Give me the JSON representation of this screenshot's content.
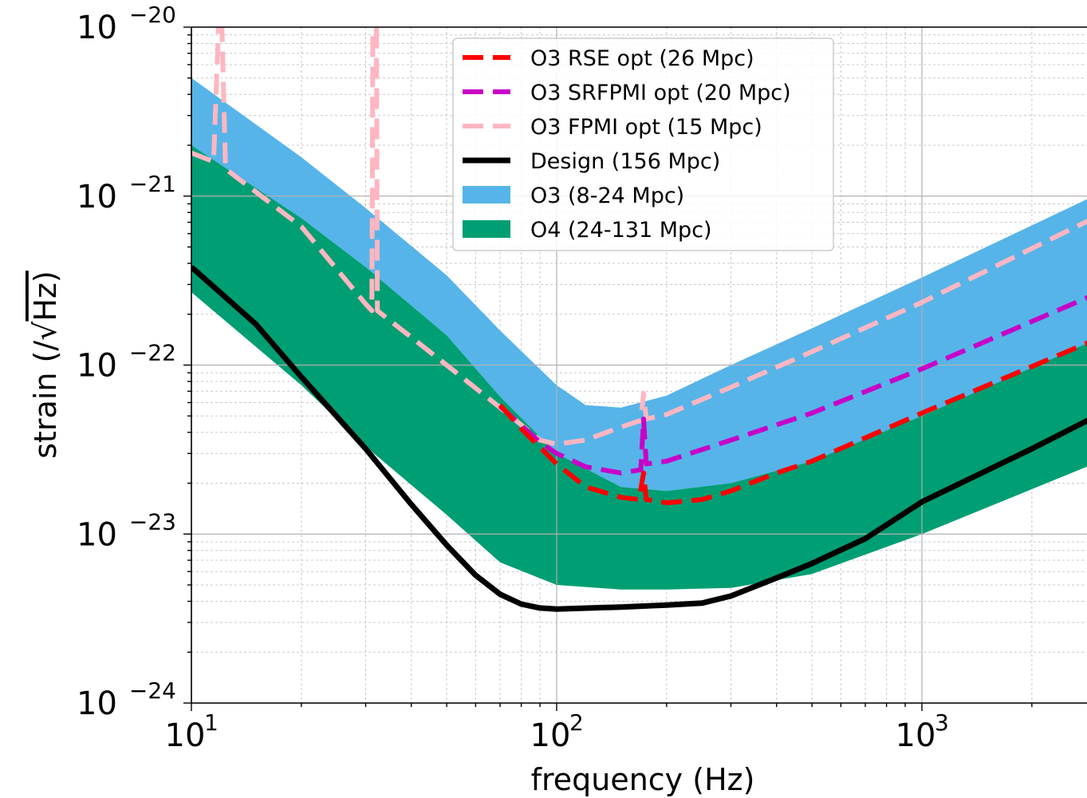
{
  "chart_data": {
    "type": "line",
    "title": "",
    "xlabel": "frequency (Hz)",
    "ylabel": "strain (/√Hz)",
    "ylabel_parts": {
      "pre": "strain (/",
      "root": "√",
      "post": "Hz)"
    },
    "xscale": "log",
    "yscale": "log",
    "xlim": [
      10,
      2950
    ],
    "ylim": [
      1e-24,
      1e-20
    ],
    "grid": true,
    "legend_position": "top-center",
    "x_ticks": [
      {
        "value": 10,
        "base": "10",
        "exp": "1"
      },
      {
        "value": 100,
        "base": "10",
        "exp": "2"
      },
      {
        "value": 1000,
        "base": "10",
        "exp": "3"
      }
    ],
    "y_ticks": [
      {
        "value": 1e-20,
        "base": "10",
        "exp": "−20"
      },
      {
        "value": 1e-21,
        "base": "10",
        "exp": "−21"
      },
      {
        "value": 1e-22,
        "base": "10",
        "exp": "−22"
      },
      {
        "value": 1e-23,
        "base": "10",
        "exp": "−23"
      },
      {
        "value": 1e-24,
        "base": "10",
        "exp": "−24"
      }
    ],
    "bands": [
      {
        "name": "O3 (8-24 Mpc)",
        "color": "#56b4e9",
        "upper": [
          [
            10,
            5e-21
          ],
          [
            20,
            1.7e-21
          ],
          [
            30,
            8.5e-22
          ],
          [
            50,
            3.4e-22
          ],
          [
            70,
            1.6e-22
          ],
          [
            100,
            7.6e-23
          ],
          [
            120,
            5.8e-23
          ],
          [
            150,
            5.6e-23
          ],
          [
            200,
            6.6e-23
          ],
          [
            300,
            1e-22
          ],
          [
            500,
            1.65e-22
          ],
          [
            1000,
            3.3e-22
          ],
          [
            2950,
            1e-21
          ]
        ],
        "lower": [
          [
            10,
            2e-21
          ],
          [
            20,
            7.4e-22
          ],
          [
            30,
            3.8e-22
          ],
          [
            50,
            1.5e-22
          ],
          [
            70,
            6.5e-23
          ],
          [
            100,
            3e-23
          ],
          [
            150,
            1.9e-23
          ],
          [
            200,
            1.8e-23
          ],
          [
            300,
            2e-23
          ],
          [
            500,
            2.7e-23
          ],
          [
            1000,
            5e-23
          ],
          [
            2950,
            1.4e-22
          ]
        ]
      },
      {
        "name": "O4 (24-131 Mpc)",
        "color": "#009e73",
        "upper": [
          [
            10,
            2e-21
          ],
          [
            20,
            7.4e-22
          ],
          [
            30,
            3.8e-22
          ],
          [
            50,
            1.5e-22
          ],
          [
            70,
            6.5e-23
          ],
          [
            100,
            3e-23
          ],
          [
            150,
            1.9e-23
          ],
          [
            200,
            1.8e-23
          ],
          [
            300,
            2e-23
          ],
          [
            500,
            2.7e-23
          ],
          [
            1000,
            5e-23
          ],
          [
            2950,
            1.4e-22
          ]
        ],
        "lower": [
          [
            10,
            2.7e-22
          ],
          [
            20,
            7.6e-23
          ],
          [
            30,
            3.3e-23
          ],
          [
            50,
            1.3e-23
          ],
          [
            70,
            6.8e-24
          ],
          [
            100,
            5e-24
          ],
          [
            150,
            4.7e-24
          ],
          [
            200,
            4.7e-24
          ],
          [
            300,
            4.8e-24
          ],
          [
            500,
            5.8e-24
          ],
          [
            1000,
            1e-23
          ],
          [
            2950,
            2.6e-23
          ]
        ]
      }
    ],
    "series": [
      {
        "name": "O3 RSE opt (26 Mpc)",
        "color": "#ff0000",
        "style": "dashed",
        "points": [
          [
            70,
            5.8e-23
          ],
          [
            80,
            4.2e-23
          ],
          [
            100,
            2.6e-23
          ],
          [
            120,
            1.9e-23
          ],
          [
            150,
            1.65e-23
          ],
          [
            168,
            1.6e-23
          ],
          [
            173,
            2.3e-23
          ],
          [
            176,
            1.6e-23
          ],
          [
            200,
            1.53e-23
          ],
          [
            250,
            1.6e-23
          ],
          [
            300,
            1.8e-23
          ],
          [
            400,
            2.3e-23
          ],
          [
            500,
            2.7e-23
          ],
          [
            1000,
            5.2e-23
          ],
          [
            2950,
            1.4e-22
          ]
        ]
      },
      {
        "name": "O3 SRFPMI opt (20 Mpc)",
        "color": "#c800c8",
        "style": "dashed",
        "points": [
          [
            70,
            5.7e-23
          ],
          [
            90,
            3.5e-23
          ],
          [
            100,
            3e-23
          ],
          [
            120,
            2.5e-23
          ],
          [
            150,
            2.3e-23
          ],
          [
            170,
            2.4e-23
          ],
          [
            173,
            4.8e-23
          ],
          [
            176,
            2.6e-23
          ],
          [
            200,
            2.7e-23
          ],
          [
            300,
            3.6e-23
          ],
          [
            500,
            5.2e-23
          ],
          [
            1000,
            9.5e-23
          ],
          [
            2950,
            2.6e-22
          ]
        ]
      },
      {
        "name": "O3 FPMI opt (15 Mpc)",
        "color": "#ffb6c1",
        "style": "dashed",
        "points": [
          [
            10,
            1.8e-21
          ],
          [
            11.5,
            1.6e-21
          ],
          [
            11.9,
            1.2e-20
          ],
          [
            12.1,
            1.2e-20
          ],
          [
            12.4,
            1.45e-21
          ],
          [
            20,
            6.6e-22
          ],
          [
            30,
            2.3e-22
          ],
          [
            31.2,
            2.1e-22
          ],
          [
            31.4,
            1.2e-20
          ],
          [
            32.1,
            1.2e-20
          ],
          [
            32.3,
            2.1e-22
          ],
          [
            50,
            1e-22
          ],
          [
            70,
            5.6e-23
          ],
          [
            90,
            3.6e-23
          ],
          [
            100,
            3.4e-23
          ],
          [
            120,
            3.6e-23
          ],
          [
            150,
            4.3e-23
          ],
          [
            170,
            4.7e-23
          ],
          [
            173,
            6.8e-23
          ],
          [
            176,
            4.8e-23
          ],
          [
            200,
            5.1e-23
          ],
          [
            300,
            7.4e-23
          ],
          [
            500,
            1.2e-22
          ],
          [
            1000,
            2.35e-22
          ],
          [
            2950,
            7.4e-22
          ]
        ]
      },
      {
        "name": "Design (156 Mpc)",
        "color": "#000000",
        "style": "solid",
        "points": [
          [
            10,
            3.8e-22
          ],
          [
            15,
            1.75e-22
          ],
          [
            20,
            8.5e-23
          ],
          [
            30,
            3.2e-23
          ],
          [
            40,
            1.5e-23
          ],
          [
            50,
            8.6e-24
          ],
          [
            60,
            5.7e-24
          ],
          [
            70,
            4.4e-24
          ],
          [
            80,
            3.85e-24
          ],
          [
            90,
            3.65e-24
          ],
          [
            100,
            3.6e-24
          ],
          [
            150,
            3.7e-24
          ],
          [
            200,
            3.8e-24
          ],
          [
            250,
            3.9e-24
          ],
          [
            300,
            4.3e-24
          ],
          [
            400,
            5.5e-24
          ],
          [
            500,
            6.7e-24
          ],
          [
            700,
            9.4e-24
          ],
          [
            1000,
            1.55e-23
          ],
          [
            2000,
            3.2e-23
          ],
          [
            2950,
            4.9e-23
          ]
        ]
      }
    ],
    "legend": [
      {
        "label": "O3 RSE opt (26 Mpc)",
        "color": "#ff0000",
        "kind": "dashed"
      },
      {
        "label": "O3 SRFPMI opt (20 Mpc)",
        "color": "#c800c8",
        "kind": "dashed"
      },
      {
        "label": "O3 FPMI opt (15 Mpc)",
        "color": "#ffb6c1",
        "kind": "dashed"
      },
      {
        "label": "Design (156 Mpc)",
        "color": "#000000",
        "kind": "solid"
      },
      {
        "label": "O3 (8-24 Mpc)",
        "color": "#56b4e9",
        "kind": "patch"
      },
      {
        "label": "O4 (24-131 Mpc)",
        "color": "#009e73",
        "kind": "patch"
      }
    ]
  }
}
